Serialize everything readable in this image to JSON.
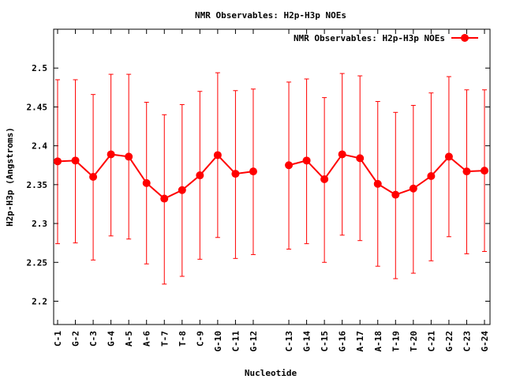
{
  "chart_data": {
    "type": "line",
    "title": "NMR Observables: H2p-H3p NOEs",
    "xlabel": "Nucleotide",
    "ylabel": "H2p-H3p (Angstroms)",
    "ylim": [
      2.17,
      2.55
    ],
    "yticks": [
      "2.2",
      "2.25",
      "2.3",
      "2.35",
      "2.4",
      "2.45",
      "2.5"
    ],
    "grid": false,
    "legend_position": "top-right",
    "categories": [
      "C-1",
      "G-2",
      "C-3",
      "G-4",
      "A-5",
      "A-6",
      "T-7",
      "T-8",
      "C-9",
      "G-10",
      "C-11",
      "G-12",
      "C-13",
      "G-14",
      "C-15",
      "G-16",
      "A-17",
      "A-18",
      "T-19",
      "T-20",
      "C-21",
      "G-22",
      "C-23",
      "G-24"
    ],
    "series": [
      {
        "name": "NMR Observables: H2p-H3p NOEs",
        "color": "#ff0000",
        "segments": [
          [
            0,
            11
          ],
          [
            12,
            23
          ]
        ],
        "values": [
          2.38,
          2.381,
          2.36,
          2.389,
          2.386,
          2.352,
          2.332,
          2.343,
          2.362,
          2.388,
          2.364,
          2.367,
          2.375,
          2.381,
          2.357,
          2.389,
          2.384,
          2.351,
          2.337,
          2.345,
          2.361,
          2.386,
          2.367,
          2.368
        ],
        "err_low": [
          2.274,
          2.275,
          2.253,
          2.284,
          2.28,
          2.248,
          2.222,
          2.232,
          2.254,
          2.282,
          2.255,
          2.26,
          2.267,
          2.274,
          2.25,
          2.285,
          2.278,
          2.245,
          2.229,
          2.236,
          2.252,
          2.283,
          2.261,
          2.264
        ],
        "err_high": [
          2.485,
          2.485,
          2.466,
          2.492,
          2.492,
          2.456,
          2.44,
          2.453,
          2.47,
          2.494,
          2.471,
          2.473,
          2.482,
          2.486,
          2.462,
          2.493,
          2.49,
          2.457,
          2.443,
          2.452,
          2.468,
          2.489,
          2.472,
          2.472
        ]
      }
    ]
  }
}
